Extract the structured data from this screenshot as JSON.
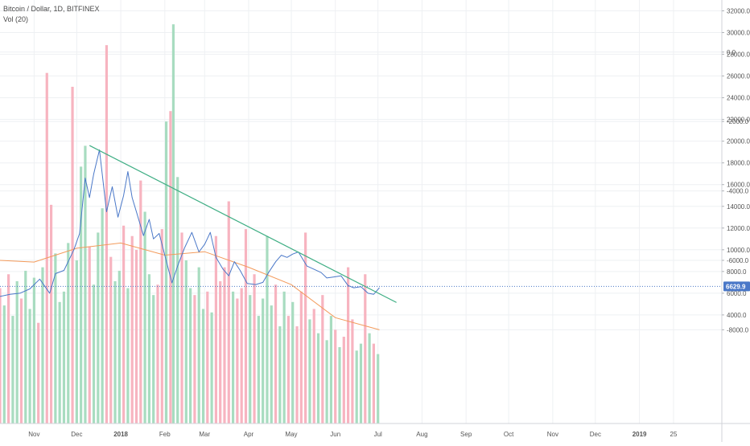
{
  "header": {
    "title": "Bitcoin / Dollar, 1D, BITFINEX",
    "volume_indicator": "Vol (20)"
  },
  "colors": {
    "price_line": "#4a78c8",
    "trend_line": "#3fae84",
    "last_price_line": "#4a78c8",
    "volume_up": "#a8dcc0",
    "volume_down": "#f7b4c0",
    "volume_ma": "#f39a5a",
    "grid": "#eef0f3",
    "axis_text": "#555555",
    "badge_bg": "#4a78c8"
  },
  "chart_data": {
    "type": "line",
    "title": "Bitcoin / Dollar, 1D, BITFINEX",
    "price_axis": {
      "ylim": [
        3400,
        33000
      ],
      "ticks": [
        "32000.0",
        "30000.0",
        "28000.0",
        "26000.0",
        "24000.0",
        "22000.0",
        "20000.0",
        "18000.0",
        "16000.0",
        "14000.0",
        "12000.0",
        "10000.0",
        "8000.0",
        "6000.0",
        "4000.0"
      ],
      "tick_values": [
        32000,
        30000,
        28000,
        26000,
        24000,
        22000,
        20000,
        18000,
        16000,
        14000,
        12000,
        10000,
        8000,
        6000,
        4000
      ]
    },
    "volume_axis": {
      "ylim": [
        -10700,
        1500
      ],
      "ticks": [
        "0.0",
        "-2000.0",
        "-4000.0",
        "-6000.0",
        "-8000.0"
      ],
      "tick_values": [
        0,
        -2000,
        -4000,
        -6000,
        -8000
      ]
    },
    "time_axis": {
      "range": [
        "2017-10-08",
        "2019-02-28"
      ],
      "ticks": [
        {
          "label": "Nov",
          "date": "2017-11-01"
        },
        {
          "label": "Dec",
          "date": "2017-12-01"
        },
        {
          "label": "2018",
          "date": "2018-01-01",
          "bold": true
        },
        {
          "label": "Feb",
          "date": "2018-02-01"
        },
        {
          "label": "Mar",
          "date": "2018-03-01"
        },
        {
          "label": "Apr",
          "date": "2018-04-01"
        },
        {
          "label": "May",
          "date": "2018-05-01"
        },
        {
          "label": "Jun",
          "date": "2018-06-01"
        },
        {
          "label": "Jul",
          "date": "2018-07-01"
        },
        {
          "label": "Aug",
          "date": "2018-08-01"
        },
        {
          "label": "Sep",
          "date": "2018-09-01"
        },
        {
          "label": "Oct",
          "date": "2018-10-01"
        },
        {
          "label": "Nov",
          "date": "2018-11-01"
        },
        {
          "label": "Dec",
          "date": "2018-12-01"
        },
        {
          "label": "2019",
          "date": "2019-01-01",
          "bold": true
        },
        {
          "label": "25",
          "date": "2019-01-25"
        }
      ]
    },
    "last_price": {
      "value": 6629.9,
      "label": "6629.9"
    },
    "trend_line": {
      "from": {
        "date": "2017-12-10",
        "value": 19600
      },
      "to": {
        "date": "2018-07-14",
        "value": 5150
      }
    },
    "series": [
      {
        "type": "line",
        "dates": [
          "2017-10-08",
          "2017-10-15",
          "2017-10-22",
          "2017-10-29",
          "2017-11-05",
          "2017-11-12",
          "2017-11-16",
          "2017-11-22",
          "2017-11-29",
          "2017-12-03",
          "2017-12-07",
          "2017-12-10",
          "2017-12-13",
          "2017-12-17",
          "2017-12-22",
          "2017-12-26",
          "2017-12-30",
          "2018-01-03",
          "2018-01-06",
          "2018-01-09",
          "2018-01-12",
          "2018-01-17",
          "2018-01-21",
          "2018-01-24",
          "2018-01-28",
          "2018-02-01",
          "2018-02-06",
          "2018-02-10",
          "2018-02-15",
          "2018-02-20",
          "2018-02-25",
          "2018-03-01",
          "2018-03-05",
          "2018-03-09",
          "2018-03-14",
          "2018-03-18",
          "2018-03-22",
          "2018-03-26",
          "2018-03-31",
          "2018-04-06",
          "2018-04-11",
          "2018-04-15",
          "2018-04-20",
          "2018-04-24",
          "2018-04-28",
          "2018-05-02",
          "2018-05-06",
          "2018-05-12",
          "2018-05-17",
          "2018-05-22",
          "2018-05-26",
          "2018-05-31",
          "2018-06-05",
          "2018-06-10",
          "2018-06-14",
          "2018-06-19",
          "2018-06-24",
          "2018-06-28",
          "2018-07-02"
        ],
        "values": [
          5700,
          5900,
          6000,
          6400,
          7300,
          6000,
          7800,
          8100,
          10000,
          11500,
          16600,
          14800,
          17000,
          19200,
          13500,
          15800,
          13000,
          15000,
          17200,
          14800,
          13500,
          11300,
          12800,
          11000,
          11500,
          9500,
          6950,
          8500,
          10200,
          11600,
          9800,
          10500,
          11600,
          9300,
          8200,
          7600,
          8900,
          8100,
          6900,
          6800,
          7000,
          7900,
          8900,
          9500,
          9300,
          9600,
          9800,
          8500,
          8200,
          7900,
          7400,
          7500,
          7600,
          6700,
          6500,
          6600,
          6000,
          5900,
          6500
        ]
      }
    ],
    "volume": {
      "ma_dates": [
        "2017-10-08",
        "2017-11-01",
        "2017-12-01",
        "2018-01-01",
        "2018-02-01",
        "2018-03-01",
        "2018-04-01",
        "2018-05-01",
        "2018-06-01",
        "2018-07-02"
      ],
      "ma_values": [
        -6000,
        -6050,
        -5650,
        -5500,
        -5850,
        -5750,
        -6200,
        -6700,
        -7650,
        -8000
      ],
      "bars": [
        {
          "date": "2017-10-08",
          "value": -6800,
          "dir": "down"
        },
        {
          "date": "2017-10-11",
          "value": -7300,
          "dir": "up"
        },
        {
          "date": "2017-10-14",
          "value": -6400,
          "dir": "down"
        },
        {
          "date": "2017-10-17",
          "value": -7600,
          "dir": "up"
        },
        {
          "date": "2017-10-20",
          "value": -6600,
          "dir": "up"
        },
        {
          "date": "2017-10-23",
          "value": -7100,
          "dir": "down"
        },
        {
          "date": "2017-10-26",
          "value": -6300,
          "dir": "up"
        },
        {
          "date": "2017-10-29",
          "value": -7400,
          "dir": "up"
        },
        {
          "date": "2017-11-01",
          "value": -6500,
          "dir": "up"
        },
        {
          "date": "2017-11-04",
          "value": -7800,
          "dir": "down"
        },
        {
          "date": "2017-11-07",
          "value": -6200,
          "dir": "up"
        },
        {
          "date": "2017-11-10",
          "value": -600,
          "dir": "down"
        },
        {
          "date": "2017-11-13",
          "value": -4400,
          "dir": "down"
        },
        {
          "date": "2017-11-16",
          "value": -5800,
          "dir": "up"
        },
        {
          "date": "2017-11-19",
          "value": -7200,
          "dir": "up"
        },
        {
          "date": "2017-11-22",
          "value": -6900,
          "dir": "up"
        },
        {
          "date": "2017-11-25",
          "value": -5500,
          "dir": "up"
        },
        {
          "date": "2017-11-28",
          "value": -1000,
          "dir": "down"
        },
        {
          "date": "2017-12-01",
          "value": -6000,
          "dir": "up"
        },
        {
          "date": "2017-12-04",
          "value": -3300,
          "dir": "up"
        },
        {
          "date": "2017-12-07",
          "value": -2700,
          "dir": "up"
        },
        {
          "date": "2017-12-10",
          "value": -5600,
          "dir": "down"
        },
        {
          "date": "2017-12-13",
          "value": -6700,
          "dir": "up"
        },
        {
          "date": "2017-12-16",
          "value": -5200,
          "dir": "up"
        },
        {
          "date": "2017-12-19",
          "value": -4500,
          "dir": "up"
        },
        {
          "date": "2017-12-22",
          "value": 200,
          "dir": "down"
        },
        {
          "date": "2017-12-25",
          "value": -5900,
          "dir": "down"
        },
        {
          "date": "2017-12-28",
          "value": -6600,
          "dir": "up"
        },
        {
          "date": "2017-12-31",
          "value": -6300,
          "dir": "up"
        },
        {
          "date": "2018-01-03",
          "value": -5000,
          "dir": "down"
        },
        {
          "date": "2018-01-06",
          "value": -6800,
          "dir": "up"
        },
        {
          "date": "2018-01-09",
          "value": -5300,
          "dir": "down"
        },
        {
          "date": "2018-01-12",
          "value": -5700,
          "dir": "down"
        },
        {
          "date": "2018-01-15",
          "value": -3700,
          "dir": "down"
        },
        {
          "date": "2018-01-18",
          "value": -4600,
          "dir": "up"
        },
        {
          "date": "2018-01-21",
          "value": -6400,
          "dir": "up"
        },
        {
          "date": "2018-01-24",
          "value": -7000,
          "dir": "up"
        },
        {
          "date": "2018-01-27",
          "value": -6700,
          "dir": "down"
        },
        {
          "date": "2018-01-30",
          "value": -5100,
          "dir": "down"
        },
        {
          "date": "2018-02-02",
          "value": -2000,
          "dir": "up"
        },
        {
          "date": "2018-02-05",
          "value": -1700,
          "dir": "down"
        },
        {
          "date": "2018-02-07",
          "value": 800,
          "dir": "up"
        },
        {
          "date": "2018-02-10",
          "value": -3600,
          "dir": "up"
        },
        {
          "date": "2018-02-13",
          "value": -5200,
          "dir": "down"
        },
        {
          "date": "2018-02-16",
          "value": -6000,
          "dir": "up"
        },
        {
          "date": "2018-02-19",
          "value": -6800,
          "dir": "up"
        },
        {
          "date": "2018-02-22",
          "value": -7000,
          "dir": "down"
        },
        {
          "date": "2018-02-25",
          "value": -6200,
          "dir": "up"
        },
        {
          "date": "2018-02-28",
          "value": -7400,
          "dir": "up"
        },
        {
          "date": "2018-03-03",
          "value": -6900,
          "dir": "down"
        },
        {
          "date": "2018-03-06",
          "value": -7500,
          "dir": "up"
        },
        {
          "date": "2018-03-09",
          "value": -5300,
          "dir": "down"
        },
        {
          "date": "2018-03-12",
          "value": -6600,
          "dir": "down"
        },
        {
          "date": "2018-03-15",
          "value": -6200,
          "dir": "down"
        },
        {
          "date": "2018-03-18",
          "value": -4300,
          "dir": "down"
        },
        {
          "date": "2018-03-21",
          "value": -6900,
          "dir": "up"
        },
        {
          "date": "2018-03-24",
          "value": -7100,
          "dir": "down"
        },
        {
          "date": "2018-03-27",
          "value": -6800,
          "dir": "down"
        },
        {
          "date": "2018-03-30",
          "value": -5100,
          "dir": "down"
        },
        {
          "date": "2018-04-02",
          "value": -7000,
          "dir": "up"
        },
        {
          "date": "2018-04-05",
          "value": -6400,
          "dir": "down"
        },
        {
          "date": "2018-04-08",
          "value": -7600,
          "dir": "up"
        },
        {
          "date": "2018-04-11",
          "value": -7100,
          "dir": "up"
        },
        {
          "date": "2018-04-14",
          "value": -5300,
          "dir": "up"
        },
        {
          "date": "2018-04-17",
          "value": -7300,
          "dir": "up"
        },
        {
          "date": "2018-04-20",
          "value": -6700,
          "dir": "down"
        },
        {
          "date": "2018-04-23",
          "value": -7900,
          "dir": "up"
        },
        {
          "date": "2018-04-26",
          "value": -6900,
          "dir": "up"
        },
        {
          "date": "2018-04-29",
          "value": -7600,
          "dir": "down"
        },
        {
          "date": "2018-05-02",
          "value": -7200,
          "dir": "up"
        },
        {
          "date": "2018-05-05",
          "value": -7900,
          "dir": "down"
        },
        {
          "date": "2018-05-08",
          "value": -6900,
          "dir": "down"
        },
        {
          "date": "2018-05-11",
          "value": -5200,
          "dir": "down"
        },
        {
          "date": "2018-05-14",
          "value": -7700,
          "dir": "up"
        },
        {
          "date": "2018-05-17",
          "value": -7400,
          "dir": "down"
        },
        {
          "date": "2018-05-20",
          "value": -8100,
          "dir": "up"
        },
        {
          "date": "2018-05-23",
          "value": -7000,
          "dir": "down"
        },
        {
          "date": "2018-05-26",
          "value": -8300,
          "dir": "up"
        },
        {
          "date": "2018-05-29",
          "value": -7600,
          "dir": "up"
        },
        {
          "date": "2018-06-01",
          "value": -8000,
          "dir": "down"
        },
        {
          "date": "2018-06-04",
          "value": -8500,
          "dir": "up"
        },
        {
          "date": "2018-06-07",
          "value": -8200,
          "dir": "down"
        },
        {
          "date": "2018-06-10",
          "value": -6200,
          "dir": "down"
        },
        {
          "date": "2018-06-13",
          "value": -7700,
          "dir": "down"
        },
        {
          "date": "2018-06-16",
          "value": -8600,
          "dir": "up"
        },
        {
          "date": "2018-06-19",
          "value": -8400,
          "dir": "up"
        },
        {
          "date": "2018-06-22",
          "value": -6400,
          "dir": "down"
        },
        {
          "date": "2018-06-25",
          "value": -8100,
          "dir": "up"
        },
        {
          "date": "2018-06-28",
          "value": -8400,
          "dir": "down"
        },
        {
          "date": "2018-07-01",
          "value": -8700,
          "dir": "up"
        }
      ]
    }
  }
}
